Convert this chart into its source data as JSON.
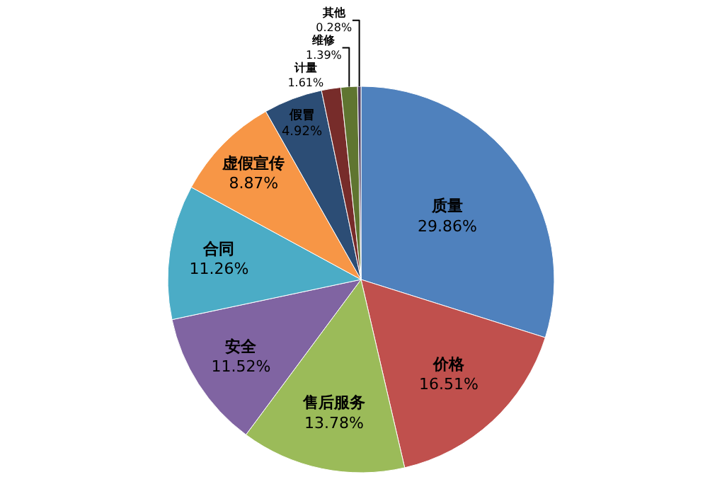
{
  "chart_data": {
    "type": "pie",
    "categories": [
      "质量",
      "价格",
      "售后服务",
      "安全",
      "合同",
      "虚假宣传",
      "假冒",
      "计量",
      "维修",
      "其他"
    ],
    "values": [
      29.86,
      16.51,
      13.78,
      11.52,
      11.26,
      8.87,
      4.92,
      1.61,
      1.39,
      0.28
    ],
    "value_labels": [
      "29.86%",
      "16.51%",
      "13.78%",
      "11.52%",
      "11.26%",
      "8.87%",
      "4.92%",
      "1.61%",
      "1.39%",
      "0.28%"
    ],
    "colors": [
      "#4f81bd",
      "#c0504d",
      "#9bbb59",
      "#8064a2",
      "#4bacc6",
      "#f79646",
      "#2c4d75",
      "#772c2a",
      "#5f7530",
      "#4d3b62"
    ],
    "legend": false
  }
}
